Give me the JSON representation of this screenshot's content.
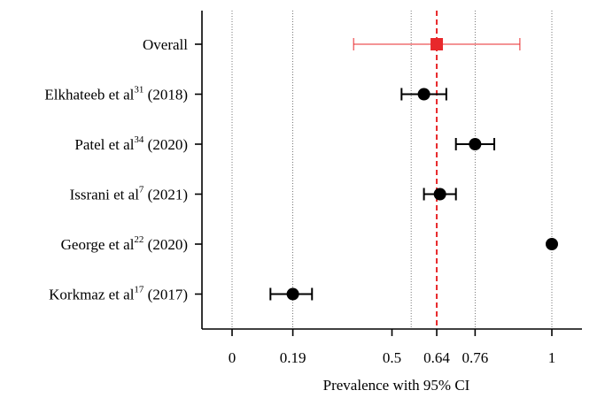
{
  "chart_data": {
    "type": "forest",
    "xlabel": "Prevalence with 95% CI",
    "xlim": [
      -0.1,
      1.1
    ],
    "xticks": [
      {
        "value": 0,
        "label": "0"
      },
      {
        "value": 0.19,
        "label": "0.19"
      },
      {
        "value": 0.5,
        "label": "0.5"
      },
      {
        "value": 0.64,
        "label": "0.64"
      },
      {
        "value": 0.76,
        "label": "0.76"
      },
      {
        "value": 1,
        "label": "1"
      }
    ],
    "reference_lines": [
      0,
      0.19,
      0.56,
      0.76,
      1
    ],
    "pooled_line": 0.64,
    "rows": [
      {
        "name": "Overall",
        "sup": "",
        "year": "",
        "estimate": 0.64,
        "lower": 0.38,
        "upper": 0.9,
        "marker": "square",
        "color": "#e8282b",
        "pooled": true
      },
      {
        "name": "Elkhateeb et al",
        "sup": "31",
        "year": "(2018)",
        "estimate": 0.6,
        "lower": 0.53,
        "upper": 0.67,
        "marker": "circle",
        "color": "#000000",
        "pooled": false
      },
      {
        "name": "Patel et al",
        "sup": "34",
        "year": "(2020)",
        "estimate": 0.76,
        "lower": 0.7,
        "upper": 0.82,
        "marker": "circle",
        "color": "#000000",
        "pooled": false
      },
      {
        "name": "Issrani et al",
        "sup": "7",
        "year": "(2021)",
        "estimate": 0.65,
        "lower": 0.6,
        "upper": 0.7,
        "marker": "circle",
        "color": "#000000",
        "pooled": false
      },
      {
        "name": "George et al",
        "sup": "22",
        "year": "(2020)",
        "estimate": 1.0,
        "lower": 1.0,
        "upper": 1.0,
        "marker": "circle",
        "color": "#000000",
        "pooled": false
      },
      {
        "name": "Korkmaz et al",
        "sup": "17",
        "year": "(2017)",
        "estimate": 0.19,
        "lower": 0.12,
        "upper": 0.25,
        "marker": "circle",
        "color": "#000000",
        "pooled": false
      }
    ],
    "colors": {
      "pooled": "#e8282b",
      "study": "#000000",
      "reference": "#555555"
    }
  }
}
